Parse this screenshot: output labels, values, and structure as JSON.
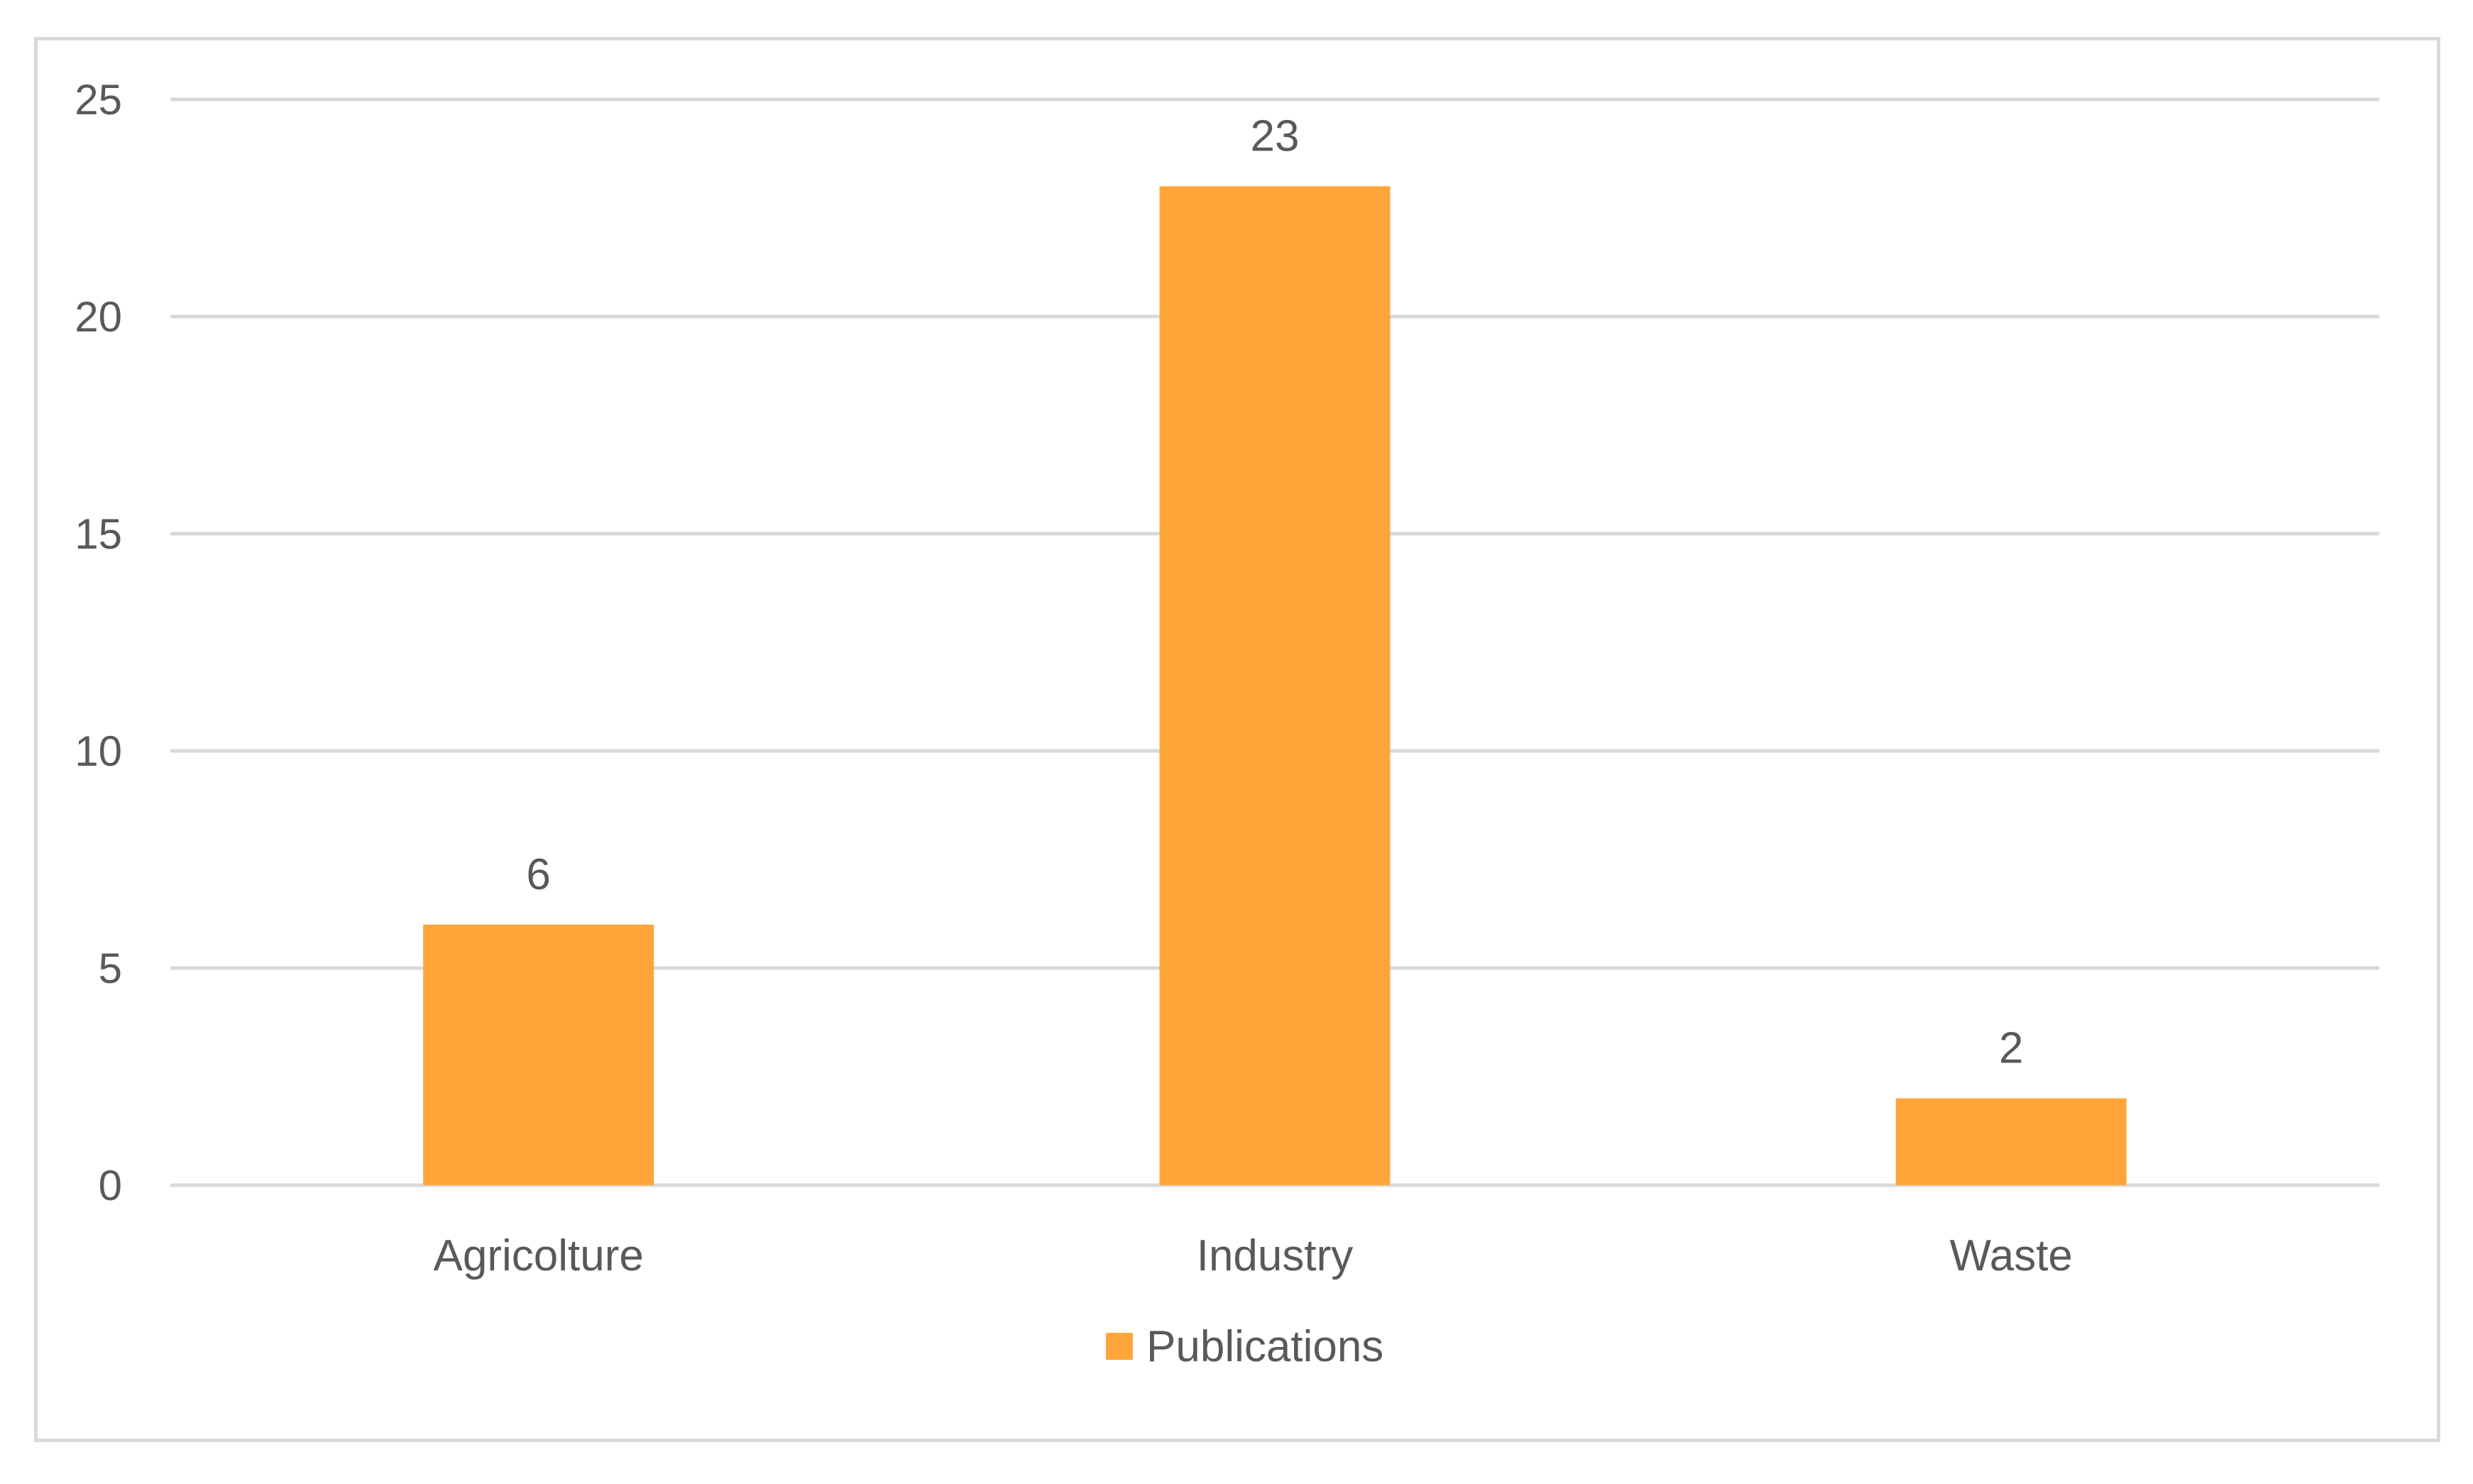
{
  "chart_data": {
    "type": "bar",
    "categories": [
      "Agricolture",
      "Industry",
      "Waste"
    ],
    "series": [
      {
        "name": "Publications",
        "values": [
          6,
          23,
          2
        ]
      }
    ],
    "data_labels": [
      "6",
      "23",
      "2"
    ],
    "ylim": [
      0,
      25
    ],
    "yticks": [
      "0",
      "5",
      "10",
      "15",
      "20",
      "25"
    ],
    "grid": true,
    "legend_position": "bottom",
    "colors": {
      "bar": "#ffa53a",
      "grid": "#d9d9d9",
      "text": "#595959"
    }
  }
}
